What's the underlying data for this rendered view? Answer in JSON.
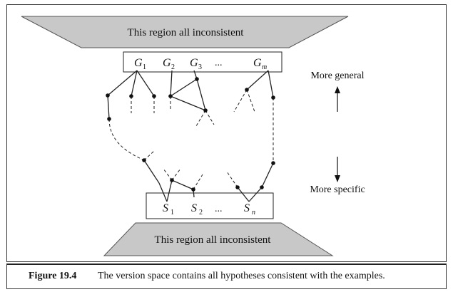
{
  "diagram": {
    "top_region_label": "This region all inconsistent",
    "bottom_region_label": "This region all inconsistent",
    "g_set": [
      {
        "letter": "G",
        "sub": "1"
      },
      {
        "letter": "G",
        "sub": "2"
      },
      {
        "letter": "G",
        "sub": "3"
      },
      {
        "letter": "G",
        "sub": "m"
      }
    ],
    "g_ellipsis": "...",
    "s_set": [
      {
        "letter": "S",
        "sub": "1"
      },
      {
        "letter": "S",
        "sub": "2"
      },
      {
        "letter": "S",
        "sub": "n"
      }
    ],
    "s_ellipsis": "...",
    "more_general_label": "More general",
    "more_specific_label": "More specific",
    "colors": {
      "trapezoid_fill": "#c8c8c8",
      "line": "#222222"
    }
  },
  "caption": {
    "label": "Figure 19.4",
    "text": "The version space contains all hypotheses consistent with the examples."
  }
}
